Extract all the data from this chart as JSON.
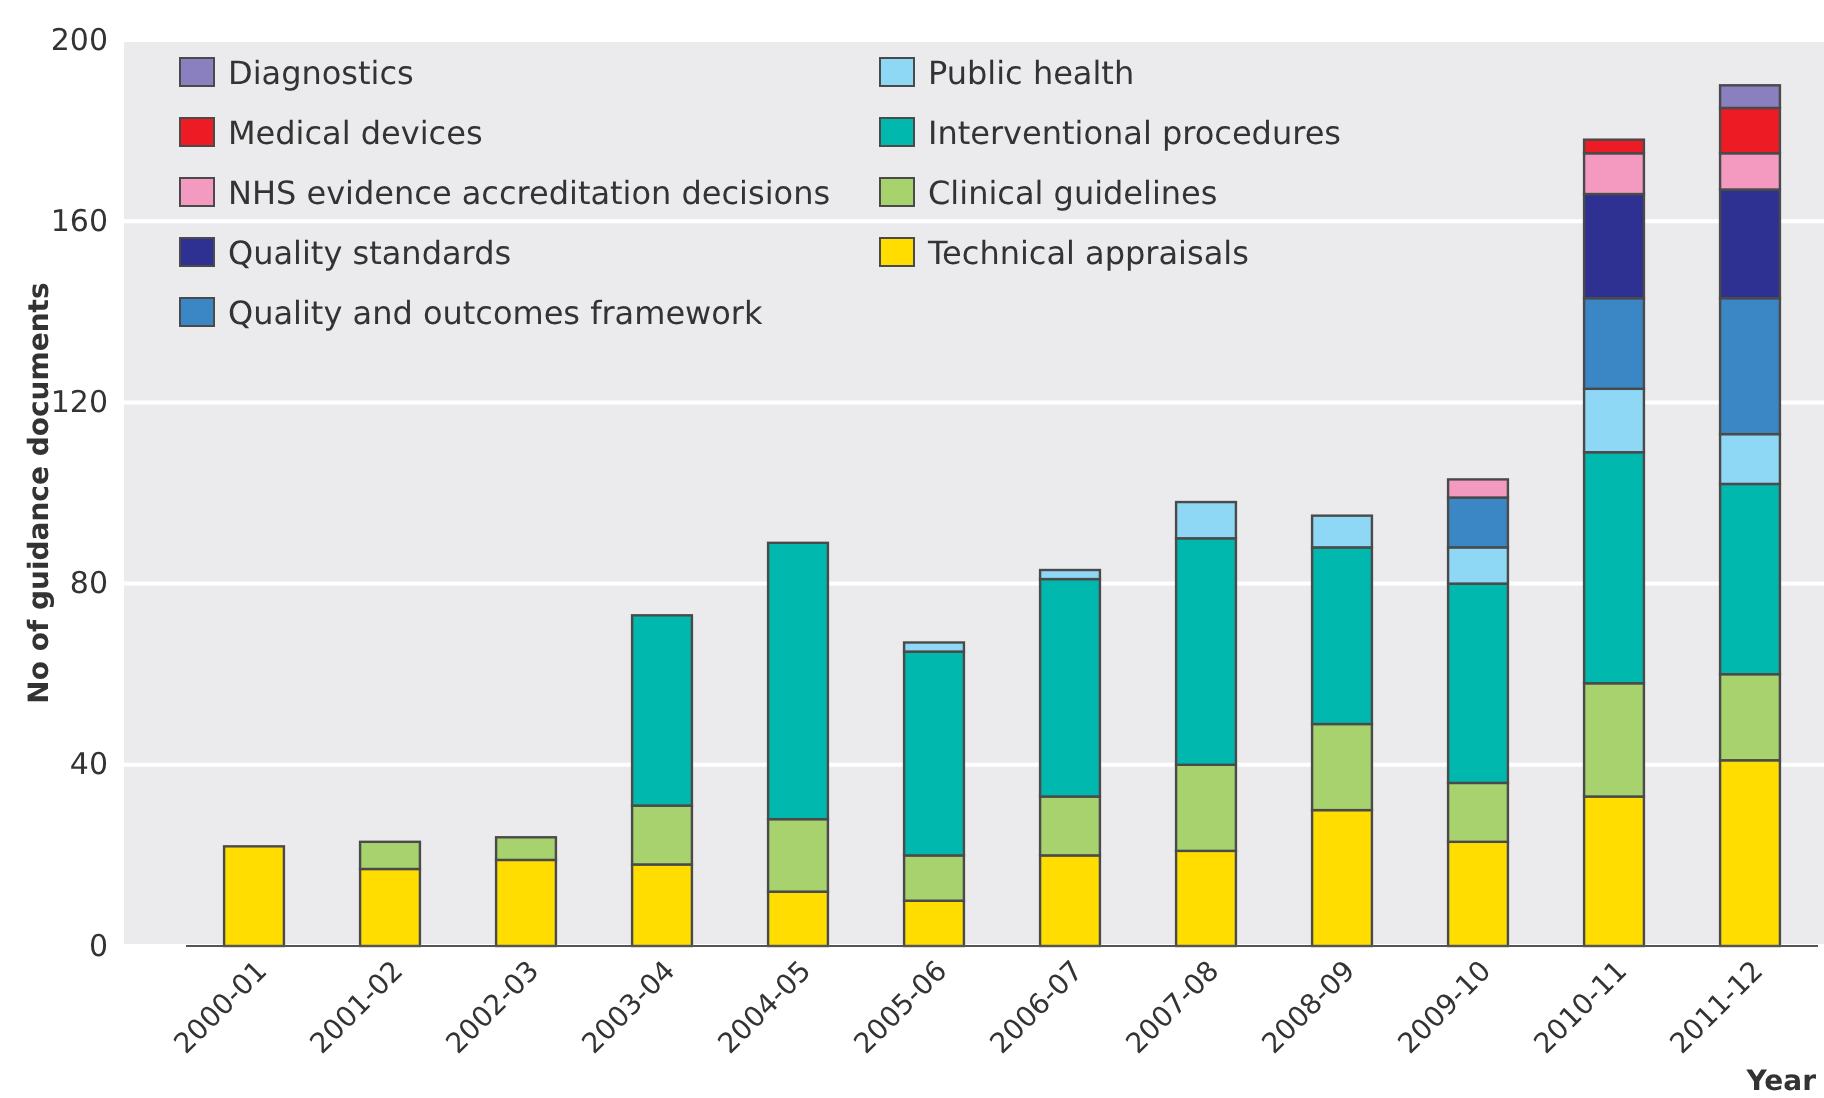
{
  "chart_data": {
    "type": "bar",
    "stacked": true,
    "xlabel": "Year",
    "ylabel": "No of guidance documents",
    "categories": [
      "2000-01",
      "2001-02",
      "2002-03",
      "2003-04",
      "2004-05",
      "2005-06",
      "2006-07",
      "2007-08",
      "2008-09",
      "2009-10",
      "2010-11",
      "2011-12"
    ],
    "ylim": [
      0,
      200
    ],
    "yticks": [
      0,
      40,
      80,
      120,
      160,
      200
    ],
    "grid": "y",
    "legend": "top left",
    "series": [
      {
        "name": "Technical appraisals",
        "color": "#ffdd00",
        "values": [
          22,
          17,
          19,
          18,
          12,
          10,
          20,
          21,
          30,
          23,
          33,
          41
        ]
      },
      {
        "name": "Clinical guidelines",
        "color": "#a8d26e",
        "values": [
          null,
          6,
          5,
          13,
          16,
          10,
          13,
          19,
          19,
          13,
          25,
          19
        ]
      },
      {
        "name": "Interventional procedures",
        "color": "#00b8ad",
        "values": [
          null,
          null,
          null,
          42,
          61,
          45,
          48,
          50,
          39,
          44,
          51,
          42
        ]
      },
      {
        "name": "Public health",
        "color": "#8fd8f5",
        "values": [
          null,
          null,
          null,
          null,
          null,
          2,
          2,
          8,
          7,
          8,
          14,
          11
        ]
      },
      {
        "name": "Quality and outcomes framework",
        "color": "#3b87c6",
        "values": [
          null,
          null,
          null,
          null,
          null,
          null,
          null,
          null,
          null,
          11,
          20,
          30
        ]
      },
      {
        "name": "Quality standards",
        "color": "#2e3192",
        "values": [
          null,
          null,
          null,
          null,
          null,
          null,
          null,
          null,
          null,
          null,
          23,
          24
        ]
      },
      {
        "name": "NHS evidence accreditation decisions",
        "color": "#f49ac1",
        "values": [
          null,
          null,
          null,
          null,
          null,
          null,
          null,
          null,
          null,
          4,
          9,
          8
        ]
      },
      {
        "name": "Medical devices",
        "color": "#ed1c24",
        "values": [
          null,
          null,
          null,
          null,
          null,
          null,
          null,
          null,
          null,
          null,
          3,
          10
        ]
      },
      {
        "name": "Diagnostics",
        "color": "#8a7fbf",
        "values": [
          null,
          null,
          null,
          null,
          null,
          null,
          null,
          null,
          null,
          null,
          null,
          5
        ]
      }
    ]
  }
}
